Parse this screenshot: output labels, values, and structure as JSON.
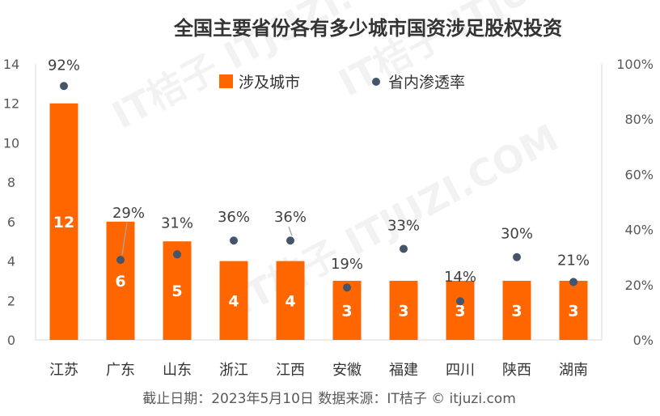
{
  "chart_data": {
    "type": "bar",
    "title": "全国主要省份各有多少城市国资涉足股权投资",
    "categories": [
      "江苏",
      "广东",
      "山东",
      "浙江",
      "江西",
      "安徽",
      "福建",
      "四川",
      "陕西",
      "湖南"
    ],
    "series": [
      {
        "name": "涉及城市",
        "kind": "bar",
        "axis": "left",
        "values": [
          12,
          6,
          5,
          4,
          4,
          3,
          3,
          3,
          3,
          3
        ]
      },
      {
        "name": "省内渗透率",
        "kind": "scatter",
        "axis": "right",
        "values": [
          92,
          29,
          31,
          36,
          36,
          19,
          33,
          14,
          30,
          21
        ]
      }
    ],
    "y_left": {
      "range": [
        0,
        14
      ],
      "ticks": [
        "0",
        "2",
        "4",
        "6",
        "8",
        "10",
        "12",
        "14"
      ]
    },
    "y_right": {
      "range": [
        0,
        100
      ],
      "ticks": [
        "0%",
        "20%",
        "40%",
        "60%",
        "80%",
        "100%"
      ]
    },
    "bar_labels": [
      "12",
      "6",
      "5",
      "4",
      "4",
      "3",
      "3",
      "3",
      "3",
      "3"
    ],
    "pct_labels": [
      "92%",
      "29%",
      "31%",
      "36%",
      "36%",
      "19%",
      "33%",
      "14%",
      "30%",
      "21%"
    ],
    "legend_position": "top-center",
    "grid": false,
    "colors": {
      "bar": "#FF6600",
      "dot": "#44546A",
      "text": "#333333"
    }
  },
  "footnote": "截止日期：2023年5月10日    数据来源：IT桔子 © itjuzi.com",
  "watermark": "IT桔子 ITJUZI.COM"
}
